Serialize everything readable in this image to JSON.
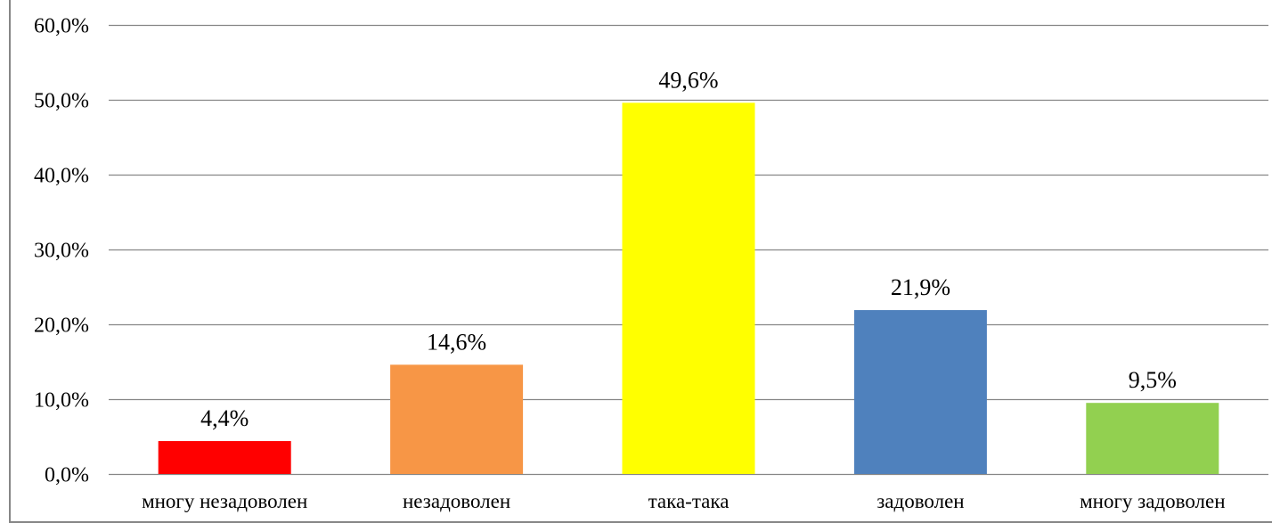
{
  "chart_data": {
    "type": "bar",
    "categories": [
      "многу незадоволен",
      "незадоволен",
      "така-така",
      "задоволен",
      "многу задоволен"
    ],
    "values": [
      4.4,
      14.6,
      49.6,
      21.9,
      9.5
    ],
    "value_labels": [
      "4,4%",
      "14,6%",
      "49,6%",
      "21,9%",
      "9,5%"
    ],
    "bar_colors": [
      "#ff0000",
      "#f79646",
      "#ffff00",
      "#4f81bd",
      "#92d050"
    ],
    "ylim": [
      0,
      60
    ],
    "yticks": [
      0,
      10,
      20,
      30,
      40,
      50,
      60
    ],
    "ytick_labels": [
      "0,0%",
      "10,0%",
      "20,0%",
      "30,0%",
      "40,0%",
      "50,0%",
      "60,0%"
    ],
    "grid": true,
    "legend": "none",
    "gridline_color": "#868686",
    "border_color": "#868686"
  }
}
